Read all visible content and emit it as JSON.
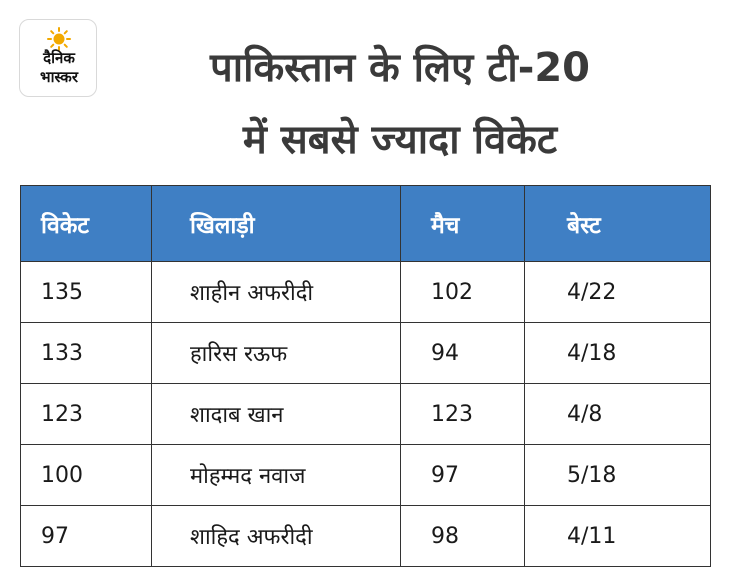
{
  "logo": {
    "line1": "दैनिक",
    "line2": "भास्कर",
    "accent_color": "#f2a900"
  },
  "title": {
    "line1": "पाकिस्तान के लिए टी-20",
    "line2": "में सबसे ज्यादा विकेट"
  },
  "table": {
    "header_color": "#3f7fc4",
    "columns": [
      "विकेट",
      "खिलाड़ी",
      "मैच",
      "बेस्ट"
    ],
    "rows": [
      [
        "135",
        "शाहीन अफरीदी",
        "102",
        "4/22"
      ],
      [
        "133",
        "हारिस रऊफ",
        "94",
        "4/18"
      ],
      [
        "123",
        "शादाब खान",
        "123",
        "4/8"
      ],
      [
        "100",
        "मोहम्मद नवाज",
        "97",
        "5/18"
      ],
      [
        "97",
        "शाहिद अफरीदी",
        "98",
        "4/11"
      ]
    ]
  }
}
